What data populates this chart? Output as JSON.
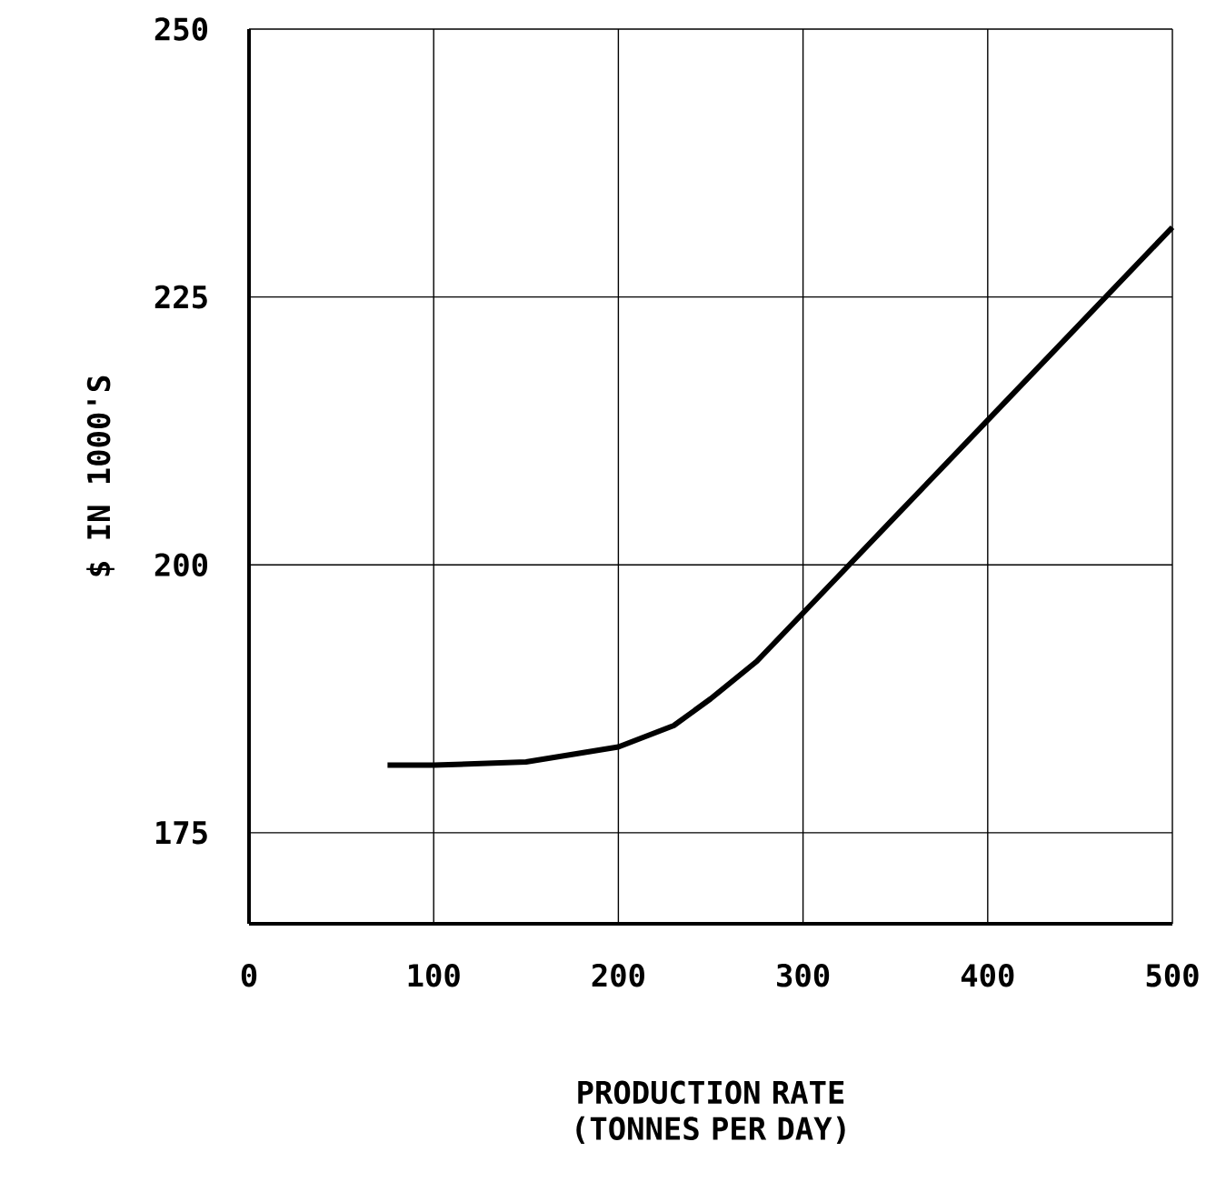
{
  "chart_data": {
    "type": "line",
    "xlabel": "PRODUCTION RATE (TONNES PER DAY)",
    "ylabel": "$ IN 1000'S",
    "x": [
      75,
      100,
      150,
      200,
      230,
      250,
      275,
      300,
      325,
      350,
      400,
      450,
      500
    ],
    "values": [
      181.3,
      181.3,
      181.6,
      183,
      185,
      187.5,
      191,
      195.5,
      200,
      204.5,
      213.5,
      222.5,
      231.5
    ],
    "color": "#000000",
    "xlim": [
      0,
      500
    ],
    "ylim": [
      166.5,
      250
    ],
    "xticks": [
      0,
      100,
      200,
      300,
      400,
      500
    ],
    "yticks": [
      175,
      200,
      225,
      250
    ],
    "grid": true
  }
}
